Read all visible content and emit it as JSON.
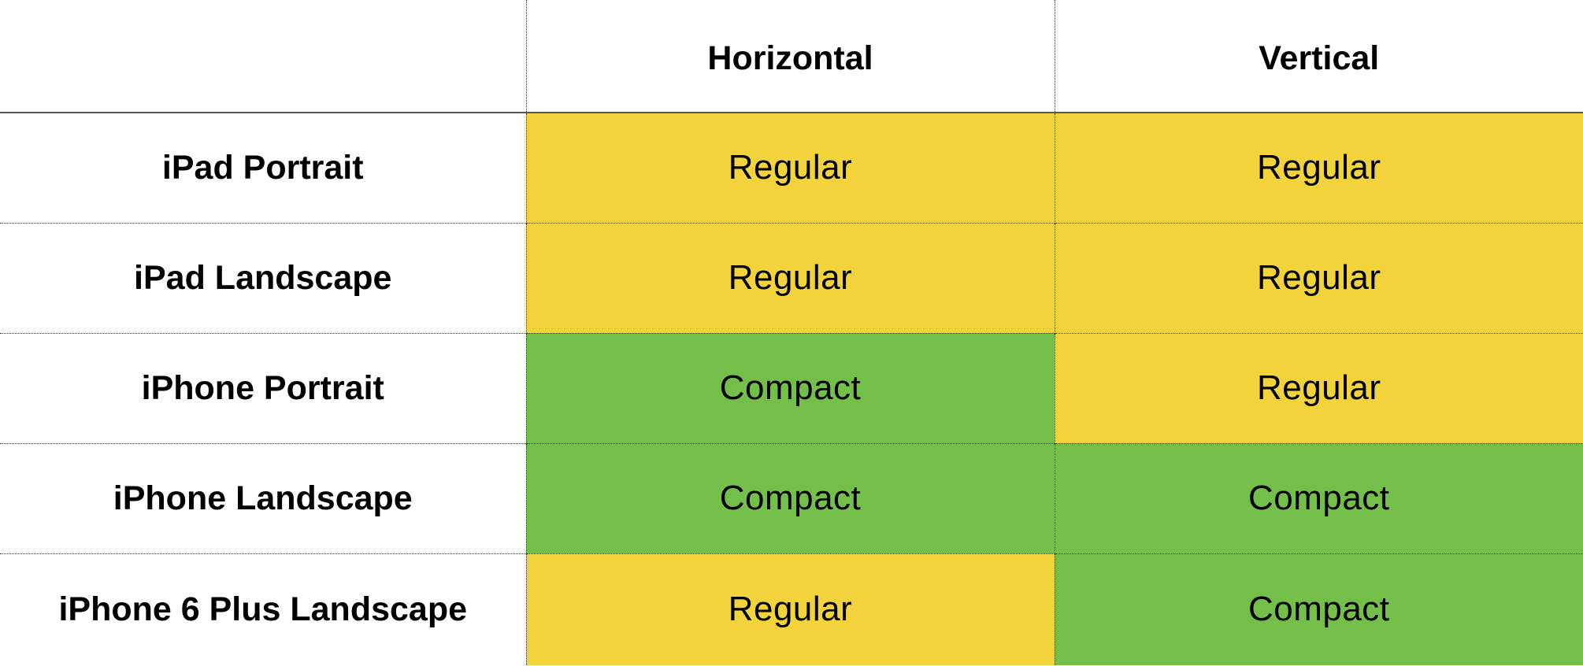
{
  "table": {
    "headers": {
      "corner": "",
      "horizontal": "Horizontal",
      "vertical": "Vertical"
    },
    "rows": [
      {
        "label": "iPad Portrait",
        "horizontal": "Regular",
        "vertical": "Regular"
      },
      {
        "label": "iPad Landscape",
        "horizontal": "Regular",
        "vertical": "Regular"
      },
      {
        "label": "iPhone Portrait",
        "horizontal": "Compact",
        "vertical": "Regular"
      },
      {
        "label": "iPhone Landscape",
        "horizontal": "Compact",
        "vertical": "Compact"
      },
      {
        "label": "iPhone 6 Plus Landscape",
        "horizontal": "Regular",
        "vertical": "Compact"
      }
    ]
  },
  "colors": {
    "regular": "#f2d33c",
    "compact": "#73bf4a",
    "background": "#ffffff",
    "grid_line": "#333333"
  }
}
